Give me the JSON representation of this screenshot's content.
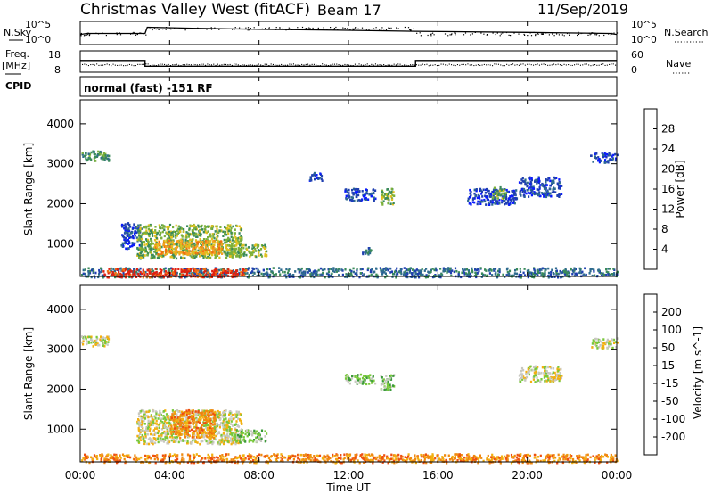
{
  "header": {
    "station": "Christmas Valley West (fitACF)",
    "beam": "Beam 17",
    "date": "11/Sep/2019"
  },
  "mode_text": "normal (fast) -151 RF",
  "left_labels": {
    "nsky": "N.Sky",
    "freq_line1": "Freq.",
    "freq_line2": "[MHz]",
    "cpid": "CPID"
  },
  "right_labels": {
    "nsearch": "N.Search",
    "nave": "Nave"
  },
  "strip_axes": {
    "noise_left_ticks": [
      "10^5",
      "10^0"
    ],
    "noise_right_ticks": [
      "10^5",
      "10^0"
    ],
    "freq_left_ticks": [
      "18",
      "8"
    ],
    "nave_right_ticks": [
      "60",
      "0"
    ]
  },
  "x_axis": {
    "label": "Time UT",
    "ticks": [
      "00:00",
      "04:00",
      "08:00",
      "12:00",
      "16:00",
      "20:00",
      "00:00"
    ]
  },
  "colors": {
    "power": [
      "#0a1aff",
      "#1f3fb0",
      "#2e6b8e",
      "#3a8a5a",
      "#7bb03a",
      "#e0c020",
      "#f5a020",
      "#f07010",
      "#e02010"
    ],
    "velocity": [
      "#e01010",
      "#ee5010",
      "#f08a10",
      "#f2b010",
      "#c8c8c0",
      "#78c83a",
      "#3a9a3a",
      "#2a8a5a",
      "#1a3a9a"
    ]
  },
  "chart_data": [
    {
      "type": "line",
      "panel": "noise",
      "ylabel_left": "N.Sky",
      "ylabel_right": "N.Search",
      "x_unit": "hours UT",
      "series": [
        {
          "name": "N.Sky",
          "x": [
            0,
            0.3,
            2.9,
            3.0,
            5,
            8,
            12,
            15,
            20,
            23.7,
            24
          ],
          "y": [
            0.4,
            0.45,
            0.45,
            0.75,
            0.7,
            0.65,
            0.6,
            0.55,
            0.5,
            0.45,
            0.4
          ]
        }
      ]
    },
    {
      "type": "line",
      "panel": "frequency",
      "ylabel_left": "Freq. [MHz]",
      "ylabel_right": "Nave",
      "ylim_left": [
        8,
        18
      ],
      "ylim_right": [
        0,
        60
      ],
      "series": [
        {
          "name": "Freq.",
          "x": [
            0,
            2.9,
            2.9,
            15,
            15,
            24
          ],
          "y": [
            13.5,
            13.5,
            10.8,
            10.8,
            13.5,
            13.5
          ]
        },
        {
          "name": "Nave",
          "x": [
            0,
            24
          ],
          "y": [
            22,
            22
          ]
        }
      ]
    },
    {
      "type": "heatmap",
      "quantity": "Power",
      "ylabel": "Slant Range [km]",
      "colorbar_label": "Power [dB]",
      "colorbar_ticks": [
        4,
        8,
        12,
        16,
        20,
        24,
        28
      ],
      "xlim": [
        0,
        24
      ],
      "ylim": [
        180,
        4600
      ],
      "y_ticks": [
        1000,
        2000,
        3000,
        4000
      ],
      "regions": [
        {
          "t0": 0.0,
          "t1": 1.3,
          "r0": 3100,
          "r1": 3350,
          "level": 3
        },
        {
          "t0": 1.8,
          "t1": 2.7,
          "r0": 900,
          "r1": 1550,
          "level": 1
        },
        {
          "t0": 2.5,
          "t1": 7.2,
          "r0": 650,
          "r1": 1500,
          "level": 4
        },
        {
          "t0": 3.3,
          "t1": 6.3,
          "r0": 750,
          "r1": 1100,
          "level": 6
        },
        {
          "t0": 6.5,
          "t1": 8.3,
          "r0": 700,
          "r1": 1000,
          "level": 4
        },
        {
          "t0": 10.2,
          "t1": 10.8,
          "r0": 2600,
          "r1": 2800,
          "level": 1
        },
        {
          "t0": 11.8,
          "t1": 13.2,
          "r0": 2100,
          "r1": 2400,
          "level": 1
        },
        {
          "t0": 12.6,
          "t1": 13.0,
          "r0": 750,
          "r1": 950,
          "level": 2
        },
        {
          "t0": 13.4,
          "t1": 14.0,
          "r0": 2000,
          "r1": 2400,
          "level": 4
        },
        {
          "t0": 17.3,
          "t1": 19.5,
          "r0": 2000,
          "r1": 2400,
          "level": 1
        },
        {
          "t0": 18.4,
          "t1": 19.0,
          "r0": 2150,
          "r1": 2450,
          "level": 4
        },
        {
          "t0": 19.6,
          "t1": 21.5,
          "r0": 2200,
          "r1": 2700,
          "level": 1
        },
        {
          "t0": 22.8,
          "t1": 24.0,
          "r0": 3050,
          "r1": 3300,
          "level": 1
        },
        {
          "t0": 0.0,
          "t1": 24.0,
          "r0": 180,
          "r1": 420,
          "level": 2
        },
        {
          "t0": 1.0,
          "t1": 7.5,
          "r0": 180,
          "r1": 400,
          "level": 8
        }
      ]
    },
    {
      "type": "heatmap",
      "quantity": "Velocity",
      "ylabel": "Slant Range [km]",
      "colorbar_label": "Velocity [m s^-1]",
      "colorbar_ticks": [
        -200,
        -100,
        -50,
        -15,
        15,
        50,
        100,
        200
      ],
      "xlim": [
        0,
        24
      ],
      "ylim": [
        180,
        4600
      ],
      "y_ticks": [
        1000,
        2000,
        3000,
        4000
      ],
      "regions": [
        {
          "t0": 0.0,
          "t1": 1.3,
          "r0": 3100,
          "r1": 3350,
          "level": 4
        },
        {
          "t0": 2.5,
          "t1": 7.2,
          "r0": 650,
          "r1": 1500,
          "level": 4
        },
        {
          "t0": 4.0,
          "t1": 6.0,
          "r0": 800,
          "r1": 1500,
          "level": 2
        },
        {
          "t0": 6.8,
          "t1": 8.3,
          "r0": 700,
          "r1": 1000,
          "level": 5
        },
        {
          "t0": 13.4,
          "t1": 14.0,
          "r0": 2000,
          "r1": 2400,
          "level": 5
        },
        {
          "t0": 11.8,
          "t1": 13.2,
          "r0": 2150,
          "r1": 2400,
          "level": 5
        },
        {
          "t0": 19.6,
          "t1": 21.5,
          "r0": 2200,
          "r1": 2600,
          "level": 4
        },
        {
          "t0": 22.8,
          "t1": 24.0,
          "r0": 3050,
          "r1": 3300,
          "level": 4
        },
        {
          "t0": 0.0,
          "t1": 24.0,
          "r0": 180,
          "r1": 400,
          "level": 2
        }
      ]
    }
  ]
}
